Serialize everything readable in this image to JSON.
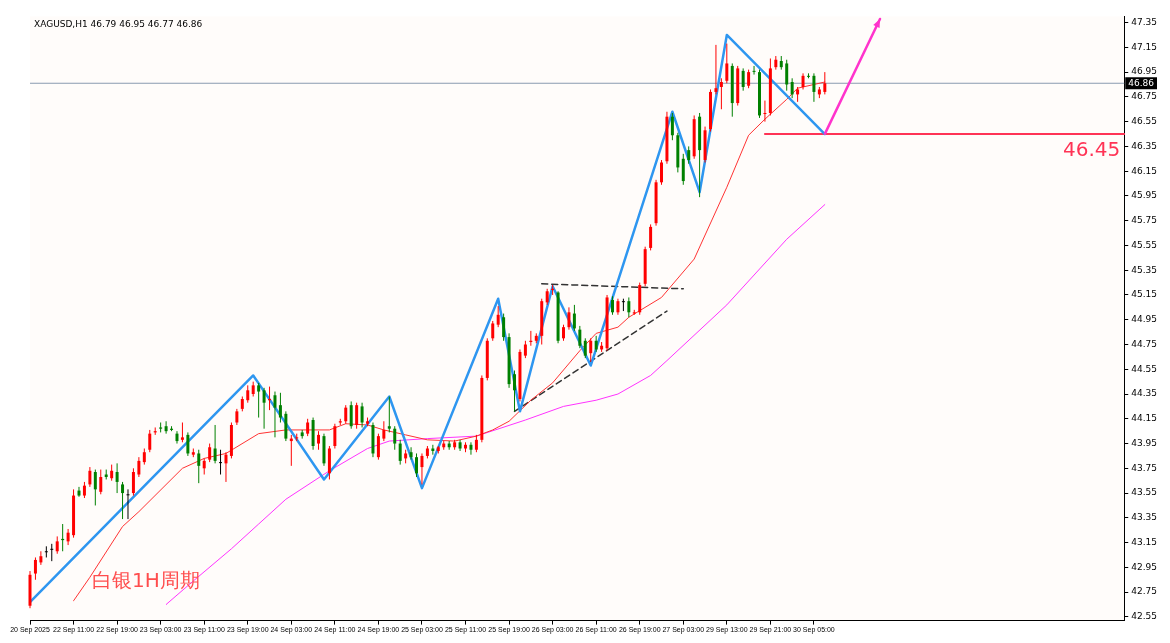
{
  "chart_data": {
    "type": "candlestick",
    "title": "XAGUSD,H1 46.79 46.95 46.77 46.86",
    "annotations": [
      "白银1H周期"
    ],
    "marker": "none",
    "categories": [
      "20 Sep 2025",
      null,
      null,
      null,
      null,
      null,
      null,
      null,
      "22 Sep 11:00",
      null,
      null,
      null,
      null,
      null,
      null,
      null,
      "22 Sep 19:00",
      null,
      null,
      null,
      null,
      null,
      null,
      null,
      "23 Sep 03:00",
      null,
      null,
      null,
      null,
      null,
      null,
      null,
      "23 Sep 11:00",
      null,
      null,
      null,
      null,
      null,
      null,
      null,
      "23 Sep 19:00",
      null,
      null,
      null,
      null,
      null,
      null,
      null,
      "24 Sep 03:00",
      null,
      null,
      null,
      null,
      null,
      null,
      null,
      "24 Sep 11:00",
      null,
      null,
      null,
      null,
      null,
      null,
      null,
      "24 Sep 19:00",
      null,
      null,
      null,
      null,
      null,
      null,
      null,
      "25 Sep 03:00",
      null,
      null,
      null,
      null,
      null,
      null,
      null,
      "25 Sep 11:00",
      null,
      null,
      null,
      null,
      null,
      null,
      null,
      "25 Sep 19:00",
      null,
      null,
      null,
      null,
      null,
      null,
      null,
      "26 Sep 03:00",
      null,
      null,
      null,
      null,
      null,
      null,
      null,
      "26 Sep 11:00",
      null,
      null,
      null,
      null,
      null,
      null,
      null,
      "26 Sep 19:00",
      null,
      null,
      null,
      null,
      null,
      null,
      null,
      "27 Sep 03:00",
      null,
      null,
      null,
      null,
      null,
      null,
      null,
      "29 Sep 13:00",
      null,
      null,
      null,
      null,
      null,
      null,
      null,
      "29 Sep 21:00",
      null,
      null,
      null,
      null,
      null,
      null,
      null,
      "30 Sep 05:00",
      null,
      null,
      null,
      null,
      null,
      null,
      null,
      null,
      null,
      null,
      null,
      null,
      null,
      null,
      null,
      null,
      null,
      null,
      null,
      null,
      null,
      null,
      null,
      null,
      null,
      null,
      null,
      null,
      null,
      null,
      null,
      null,
      null,
      null,
      null,
      null,
      null,
      null,
      null,
      null,
      null,
      null,
      null,
      null,
      null,
      null,
      null,
      null,
      null,
      null,
      null,
      null,
      null,
      null,
      null,
      null,
      null
    ],
    "ohlc": [
      [
        42.64,
        42.92,
        42.62,
        42.89
      ],
      [
        42.9,
        43.03,
        42.85,
        43.01
      ],
      [
        42.99,
        43.08,
        42.97,
        43.04
      ],
      [
        43.08,
        43.12,
        43.03,
        43.08
      ],
      [
        43.1,
        43.14,
        43.0,
        43.1
      ],
      [
        43.08,
        43.2,
        43.06,
        43.16
      ],
      [
        43.18,
        43.3,
        43.08,
        43.17
      ],
      [
        43.16,
        43.26,
        43.13,
        43.23
      ],
      [
        43.21,
        43.58,
        43.19,
        43.53
      ],
      [
        43.57,
        43.6,
        43.52,
        43.53
      ],
      [
        43.53,
        43.64,
        43.51,
        43.61
      ],
      [
        43.62,
        43.76,
        43.6,
        43.73
      ],
      [
        43.72,
        43.74,
        43.45,
        43.58
      ],
      [
        43.56,
        43.74,
        43.54,
        43.68
      ],
      [
        43.7,
        43.74,
        43.66,
        43.68
      ],
      [
        43.67,
        43.78,
        43.65,
        43.73
      ],
      [
        43.72,
        43.79,
        43.55,
        43.64
      ],
      [
        43.62,
        43.64,
        43.34,
        43.55
      ],
      [
        43.54,
        43.58,
        43.34,
        43.54
      ],
      [
        43.55,
        43.75,
        43.53,
        43.72
      ],
      [
        43.7,
        43.84,
        43.68,
        43.81
      ],
      [
        43.8,
        43.91,
        43.78,
        43.88
      ],
      [
        43.9,
        44.06,
        43.88,
        44.03
      ],
      [
        44.04,
        44.08,
        44.02,
        44.05
      ],
      [
        44.08,
        44.12,
        44.04,
        44.07
      ],
      [
        44.09,
        44.13,
        44.03,
        44.05
      ],
      [
        44.07,
        44.09,
        44.05,
        44.06
      ],
      [
        44.03,
        44.05,
        43.95,
        43.97
      ],
      [
        43.98,
        44.12,
        43.96,
        44.0
      ],
      [
        44.02,
        44.04,
        43.85,
        43.87
      ],
      [
        43.86,
        43.91,
        43.84,
        43.88
      ],
      [
        43.87,
        43.9,
        43.63,
        43.77
      ],
      [
        43.75,
        43.83,
        43.7,
        43.81
      ],
      [
        43.82,
        43.95,
        43.8,
        43.92
      ],
      [
        43.91,
        44.1,
        43.79,
        43.81
      ],
      [
        43.8,
        43.9,
        43.7,
        43.8
      ],
      [
        43.79,
        43.88,
        43.64,
        43.86
      ],
      [
        43.85,
        44.12,
        43.83,
        44.1
      ],
      [
        44.12,
        44.23,
        44.1,
        44.21
      ],
      [
        44.23,
        44.33,
        44.21,
        44.31
      ],
      [
        44.3,
        44.42,
        44.28,
        44.38
      ],
      [
        44.35,
        44.45,
        44.33,
        44.42
      ],
      [
        44.42,
        44.44,
        44.16,
        44.37
      ],
      [
        44.38,
        44.4,
        44.07,
        44.28
      ],
      [
        44.3,
        44.41,
        44.22,
        44.31
      ],
      [
        44.34,
        44.37,
        44.0,
        44.24
      ],
      [
        44.26,
        44.36,
        44.12,
        44.16
      ],
      [
        44.19,
        44.21,
        43.97,
        43.99
      ],
      [
        43.97,
        44.02,
        43.77,
        43.99
      ],
      [
        44.0,
        44.03,
        43.97,
        44.0
      ],
      [
        44.04,
        44.06,
        43.99,
        44.01
      ],
      [
        44.03,
        44.15,
        44.01,
        44.12
      ],
      [
        44.14,
        44.16,
        43.9,
        43.93
      ],
      [
        43.95,
        44.05,
        43.9,
        44.02
      ],
      [
        44.01,
        44.03,
        43.77,
        43.79
      ],
      [
        43.71,
        43.93,
        43.66,
        43.91
      ],
      [
        43.93,
        44.11,
        43.91,
        44.09
      ],
      [
        44.12,
        44.15,
        44.1,
        44.13
      ],
      [
        44.13,
        44.26,
        44.11,
        44.24
      ],
      [
        44.26,
        44.29,
        44.07,
        44.09
      ],
      [
        44.1,
        44.28,
        44.07,
        44.26
      ],
      [
        44.25,
        44.28,
        44.08,
        44.12
      ],
      [
        44.11,
        44.16,
        44.09,
        44.13
      ],
      [
        44.1,
        44.12,
        43.84,
        43.87
      ],
      [
        43.84,
        44.03,
        43.82,
        44.01
      ],
      [
        43.99,
        44.13,
        43.97,
        44.06
      ],
      [
        44.09,
        44.33,
        44.04,
        44.07
      ],
      [
        44.07,
        44.09,
        43.9,
        43.95
      ],
      [
        43.95,
        43.98,
        43.78,
        43.81
      ],
      [
        43.83,
        43.9,
        43.79,
        43.87
      ],
      [
        43.88,
        43.92,
        43.82,
        43.84
      ],
      [
        43.84,
        43.87,
        43.68,
        43.71
      ],
      [
        43.76,
        43.87,
        43.62,
        43.85
      ],
      [
        43.85,
        43.93,
        43.83,
        43.91
      ],
      [
        43.91,
        43.94,
        43.86,
        43.89
      ],
      [
        43.89,
        43.93,
        43.87,
        43.92
      ],
      [
        43.92,
        43.97,
        43.9,
        43.95
      ],
      [
        43.95,
        43.97,
        43.9,
        43.92
      ],
      [
        43.92,
        43.98,
        43.9,
        43.96
      ],
      [
        43.96,
        43.98,
        43.89,
        43.91
      ],
      [
        43.91,
        43.96,
        43.88,
        43.94
      ],
      [
        43.94,
        43.96,
        43.86,
        43.9
      ],
      [
        43.9,
        44.02,
        43.88,
        43.98
      ],
      [
        43.98,
        44.5,
        43.96,
        44.48
      ],
      [
        44.48,
        44.8,
        44.46,
        44.78
      ],
      [
        44.8,
        44.94,
        44.78,
        44.92
      ],
      [
        44.91,
        45.06,
        44.89,
        44.99
      ],
      [
        44.97,
        45.0,
        44.78,
        44.81
      ],
      [
        44.81,
        44.84,
        44.4,
        44.43
      ],
      [
        44.51,
        44.54,
        44.21,
        44.38
      ],
      [
        44.31,
        44.71,
        44.29,
        44.69
      ],
      [
        44.66,
        44.78,
        44.64,
        44.75
      ],
      [
        44.77,
        44.86,
        44.74,
        44.78
      ],
      [
        44.78,
        44.84,
        44.76,
        44.82
      ],
      [
        44.82,
        45.12,
        44.75,
        45.1
      ],
      [
        45.09,
        45.2,
        45.07,
        45.18
      ],
      [
        45.19,
        45.23,
        45.15,
        45.2
      ],
      [
        45.17,
        45.18,
        44.76,
        44.78
      ],
      [
        44.8,
        44.91,
        44.78,
        44.89
      ],
      [
        44.89,
        45.05,
        44.87,
        45.01
      ],
      [
        45.0,
        45.07,
        44.86,
        44.88
      ],
      [
        44.87,
        44.9,
        44.72,
        44.74
      ],
      [
        44.78,
        44.8,
        44.64,
        44.66
      ],
      [
        44.68,
        44.8,
        44.61,
        44.78
      ],
      [
        44.78,
        44.82,
        44.69,
        44.71
      ],
      [
        44.71,
        44.77,
        44.69,
        44.74
      ],
      [
        44.72,
        45.15,
        44.7,
        45.13
      ],
      [
        45.11,
        45.14,
        44.99,
        45.01
      ],
      [
        45.01,
        45.12,
        44.99,
        45.1
      ],
      [
        45.1,
        45.12,
        45.02,
        45.1
      ],
      [
        45.1,
        45.13,
        44.97,
        45.01
      ],
      [
        45.0,
        45.03,
        44.99,
        45.01
      ],
      [
        45.01,
        45.25,
        44.99,
        45.23
      ],
      [
        45.24,
        45.54,
        45.22,
        45.52
      ],
      [
        45.53,
        45.72,
        45.51,
        45.7
      ],
      [
        45.73,
        46.08,
        45.71,
        46.06
      ],
      [
        46.06,
        46.24,
        46.04,
        46.22
      ],
      [
        46.23,
        46.63,
        46.21,
        46.59
      ],
      [
        46.59,
        46.62,
        46.4,
        46.44
      ],
      [
        46.44,
        46.46,
        46.14,
        46.18
      ],
      [
        46.25,
        46.29,
        46.04,
        46.07
      ],
      [
        46.32,
        46.35,
        46.21,
        46.24
      ],
      [
        46.27,
        46.6,
        46.25,
        46.57
      ],
      [
        46.59,
        46.62,
        45.94,
        46.32
      ],
      [
        46.24,
        46.51,
        46.22,
        46.48
      ],
      [
        46.49,
        46.81,
        46.47,
        46.79
      ],
      [
        46.79,
        47.17,
        46.77,
        46.82
      ],
      [
        46.83,
        46.9,
        46.65,
        46.87
      ],
      [
        46.88,
        47.18,
        46.86,
        47.02
      ],
      [
        47.0,
        47.02,
        46.59,
        46.7
      ],
      [
        46.7,
        47.0,
        46.68,
        46.98
      ],
      [
        46.96,
        46.98,
        46.8,
        46.83
      ],
      [
        46.84,
        46.97,
        46.82,
        46.95
      ],
      [
        46.96,
        47.0,
        46.93,
        46.96
      ],
      [
        46.95,
        46.97,
        46.58,
        46.6
      ],
      [
        46.62,
        46.72,
        46.55,
        46.62
      ],
      [
        46.62,
        47.06,
        46.6,
        46.98
      ],
      [
        46.99,
        47.08,
        46.97,
        47.05
      ],
      [
        47.04,
        47.08,
        46.97,
        46.99
      ],
      [
        47.02,
        47.05,
        46.8,
        46.85
      ],
      [
        46.87,
        46.9,
        46.74,
        46.77
      ],
      [
        46.77,
        46.83,
        46.71,
        46.81
      ],
      [
        46.83,
        46.94,
        46.81,
        46.92
      ],
      [
        46.92,
        46.94,
        46.9,
        46.92
      ],
      [
        46.92,
        46.94,
        46.71,
        46.79
      ],
      [
        46.77,
        46.83,
        46.74,
        46.81
      ],
      [
        46.79,
        46.95,
        46.77,
        46.86
      ],
      null,
      null,
      null,
      null,
      null,
      null,
      null,
      null,
      null,
      null,
      null,
      null,
      null,
      null,
      null,
      null,
      null,
      null,
      null,
      null,
      null,
      null,
      null,
      null,
      null,
      null,
      null,
      null,
      null,
      null,
      null,
      null,
      null,
      null,
      null,
      null,
      null,
      null,
      null,
      null,
      null,
      null,
      null,
      null,
      null,
      null,
      null,
      null,
      null,
      null,
      null,
      null,
      null,
      null,
      null
    ],
    "colors": [
      "#ff0000",
      "#ff0000",
      "#ff0000",
      "#000000",
      "#000000",
      "#ff0000",
      "#008000",
      "#ff0000",
      "#ff0000",
      "#008000",
      "#ff0000",
      "#ff0000",
      "#008000",
      "#ff0000",
      "#008000",
      "#ff0000",
      "#008000",
      "#008000",
      "#000000",
      "#ff0000",
      "#ff0000",
      "#ff0000",
      "#ff0000",
      "#ff0000",
      "#008000",
      "#008000",
      "#008000",
      "#008000",
      "#ff0000",
      "#008000",
      "#ff0000",
      "#008000",
      "#ff0000",
      "#ff0000",
      "#008000",
      "#000000",
      "#ff0000",
      "#ff0000",
      "#ff0000",
      "#ff0000",
      "#ff0000",
      "#ff0000",
      "#008000",
      "#008000",
      "#ff0000",
      "#008000",
      "#008000",
      "#008000",
      "#ff0000",
      "#ff0000",
      "#008000",
      "#ff0000",
      "#008000",
      "#ff0000",
      "#008000",
      "#ff0000",
      "#ff0000",
      "#ff0000",
      "#ff0000",
      "#008000",
      "#ff0000",
      "#008000",
      "#ff0000",
      "#008000",
      "#ff0000",
      "#ff0000",
      "#008000",
      "#008000",
      "#008000",
      "#ff0000",
      "#008000",
      "#008000",
      "#ff0000",
      "#ff0000",
      "#008000",
      "#ff0000",
      "#ff0000",
      "#008000",
      "#ff0000",
      "#008000",
      "#ff0000",
      "#008000",
      "#ff0000",
      "#ff0000",
      "#ff0000",
      "#ff0000",
      "#ff0000",
      "#008000",
      "#008000",
      "#008000",
      "#ff0000",
      "#ff0000",
      "#ff0000",
      "#ff0000",
      "#ff0000",
      "#ff0000",
      "#ff0000",
      "#008000",
      "#ff0000",
      "#ff0000",
      "#008000",
      "#008000",
      "#008000",
      "#ff0000",
      "#008000",
      "#ff0000",
      "#ff0000",
      "#008000",
      "#ff0000",
      "#000000",
      "#008000",
      "#ff0000",
      "#ff0000",
      "#ff0000",
      "#ff0000",
      "#ff0000",
      "#ff0000",
      "#ff0000",
      "#008000",
      "#008000",
      "#008000",
      "#008000",
      "#ff0000",
      "#008000",
      "#ff0000",
      "#ff0000",
      "#ff0000",
      "#ff0000",
      "#ff0000",
      "#008000",
      "#ff0000",
      "#008000",
      "#ff0000",
      "#008000",
      "#008000",
      "#ff0000",
      "#ff0000",
      "#ff0000",
      "#008000",
      "#008000",
      "#008000",
      "#ff0000",
      "#ff0000",
      "#008000",
      "#008000",
      "#ff0000",
      "#ff0000",
      null,
      null,
      null,
      null,
      null,
      null,
      null,
      null,
      null,
      null,
      null,
      null,
      null,
      null,
      null,
      null,
      null,
      null,
      null,
      null,
      null,
      null,
      null,
      null,
      null,
      null,
      null,
      null,
      null,
      null,
      null,
      null,
      null,
      null,
      null,
      null,
      null,
      null,
      null,
      null,
      null,
      null,
      null,
      null,
      null,
      null,
      null,
      null,
      null,
      null,
      null,
      null,
      null,
      null,
      null
    ],
    "series": [
      {
        "type": "line",
        "color": "#2e96f0",
        "line_style": "solid",
        "values": [
          42.67,
          null,
          null,
          null,
          null,
          null,
          null,
          null,
          null,
          null,
          null,
          null,
          null,
          null,
          null,
          null,
          null,
          null,
          null,
          null,
          null,
          null,
          null,
          null,
          null,
          null,
          null,
          null,
          null,
          null,
          null,
          null,
          null,
          null,
          null,
          null,
          null,
          null,
          null,
          null,
          null,
          44.5,
          null,
          null,
          null,
          null,
          null,
          null,
          null,
          null,
          null,
          null,
          null,
          null,
          43.66,
          null,
          null,
          null,
          null,
          null,
          null,
          null,
          null,
          null,
          null,
          null,
          44.33,
          null,
          null,
          null,
          null,
          null,
          43.59,
          null,
          null,
          null,
          null,
          null,
          null,
          null,
          null,
          null,
          null,
          null,
          null,
          null,
          45.12,
          null,
          null,
          null,
          44.21,
          null,
          null,
          null,
          null,
          null,
          45.22,
          null,
          null,
          null,
          null,
          null,
          null,
          44.58,
          null,
          null,
          null,
          null,
          null,
          null,
          null,
          null,
          null,
          null,
          null,
          null,
          null,
          null,
          46.63,
          null,
          null,
          null,
          null,
          45.98,
          null,
          null,
          null,
          null,
          47.25,
          null,
          null,
          null,
          null,
          null,
          null,
          null,
          null,
          null,
          null,
          null,
          null,
          null,
          null,
          null,
          null,
          null,
          46.45,
          null,
          null,
          null,
          null,
          null,
          null,
          null,
          null,
          null,
          null,
          null,
          null,
          null,
          null,
          null,
          null,
          null,
          null,
          null,
          null,
          null,
          null,
          null,
          null,
          null,
          null,
          null,
          null,
          null,
          null,
          null,
          null,
          null,
          null,
          null,
          null,
          null,
          null,
          null,
          null,
          null,
          null,
          null,
          null,
          null,
          null,
          null,
          null,
          null,
          null,
          null,
          null,
          null,
          null,
          null
        ]
      },
      {
        "type": "line",
        "color": "#ff3333",
        "line_style": "solid",
        "values": [
          null,
          null,
          null,
          null,
          null,
          null,
          null,
          null,
          42.68,
          null,
          null,
          42.87,
          null,
          null,
          null,
          null,
          null,
          43.28,
          null,
          null,
          43.4,
          null,
          null,
          null,
          null,
          null,
          null,
          null,
          43.75,
          null,
          null,
          null,
          43.83,
          null,
          null,
          null,
          43.87,
          null,
          null,
          null,
          null,
          null,
          44.03,
          null,
          null,
          null,
          null,
          44.06,
          null,
          null,
          null,
          null,
          null,
          null,
          null,
          44.06,
          null,
          null,
          44.11,
          null,
          null,
          null,
          44.1,
          null,
          null,
          44.06,
          null,
          null,
          null,
          44.02,
          null,
          null,
          null,
          43.98,
          null,
          null,
          null,
          null,
          43.97,
          null,
          null,
          null,
          44.01,
          null,
          null,
          44.06,
          null,
          null,
          44.13,
          null,
          null,
          null,
          44.3,
          null,
          null,
          null,
          44.44,
          null,
          null,
          null,
          null,
          44.7,
          null,
          null,
          44.84,
          null,
          null,
          null,
          44.89,
          null,
          44.97,
          null,
          null,
          null,
          null,
          null,
          45.13,
          null,
          null,
          null,
          null,
          null,
          45.44,
          null,
          null,
          null,
          null,
          null,
          46.02,
          null,
          null,
          null,
          46.44,
          null,
          null,
          46.57,
          null,
          null,
          null,
          46.73,
          null,
          46.82,
          null,
          null,
          null,
          null,
          46.87,
          null,
          null,
          null,
          null,
          null,
          null,
          null,
          null,
          null,
          null,
          null,
          null,
          null,
          null,
          null,
          null,
          null,
          null,
          null,
          null,
          null,
          null,
          null,
          null,
          null,
          null,
          null,
          null,
          null,
          null,
          null,
          null,
          null,
          null,
          null,
          null,
          null,
          null,
          null,
          null,
          null,
          null,
          null,
          null,
          null,
          null,
          null,
          null,
          null,
          null,
          null,
          null,
          null,
          null,
          null
        ]
      },
      {
        "type": "line",
        "color": "#ff33ff",
        "line_style": "solid",
        "values": [
          null,
          null,
          null,
          null,
          null,
          null,
          null,
          null,
          null,
          null,
          null,
          null,
          null,
          null,
          null,
          null,
          null,
          null,
          null,
          null,
          null,
          null,
          null,
          null,
          null,
          42.65,
          null,
          null,
          null,
          null,
          42.84,
          null,
          null,
          null,
          null,
          null,
          null,
          43.1,
          null,
          null,
          null,
          null,
          43.3,
          null,
          null,
          null,
          null,
          43.5,
          null,
          null,
          null,
          null,
          null,
          null,
          null,
          43.73,
          null,
          null,
          null,
          null,
          null,
          null,
          43.91,
          null,
          null,
          null,
          43.97,
          null,
          null,
          null,
          null,
          null,
          null,
          43.99,
          null,
          null,
          null,
          null,
          null,
          null,
          null,
          null,
          44.01,
          null,
          null,
          null,
          null,
          null,
          null,
          null,
          null,
          44.14,
          null,
          null,
          null,
          null,
          null,
          null,
          44.25,
          null,
          null,
          null,
          null,
          null,
          44.3,
          null,
          null,
          null,
          44.35,
          null,
          null,
          null,
          null,
          null,
          44.5,
          null,
          null,
          44.62,
          null,
          null,
          null,
          null,
          null,
          null,
          null,
          null,
          null,
          null,
          45.07,
          null,
          null,
          null,
          null,
          null,
          null,
          null,
          null,
          null,
          null,
          45.6,
          null,
          null,
          null,
          null,
          null,
          null,
          45.88,
          null,
          null,
          null,
          null,
          null,
          null,
          null,
          null,
          null,
          null,
          null,
          null,
          null,
          null,
          null,
          null,
          null,
          null,
          null,
          null,
          null,
          null,
          null,
          null,
          null,
          null,
          null,
          null,
          null,
          null,
          null,
          null,
          null,
          null,
          null,
          null,
          null,
          null,
          null,
          null,
          null,
          null,
          null,
          null,
          null,
          null,
          null,
          null,
          null,
          null,
          null,
          null,
          null,
          null,
          null
        ]
      },
      {
        "type": "line",
        "color": "#333333",
        "line_style": "dashed",
        "values": [
          null,
          null,
          null,
          null,
          null,
          null,
          null,
          null,
          null,
          null,
          null,
          null,
          null,
          null,
          null,
          null,
          null,
          null,
          null,
          null,
          null,
          null,
          null,
          null,
          null,
          null,
          null,
          null,
          null,
          null,
          null,
          null,
          null,
          null,
          null,
          null,
          null,
          null,
          null,
          null,
          null,
          null,
          null,
          null,
          null,
          null,
          null,
          null,
          null,
          null,
          null,
          null,
          null,
          null,
          null,
          null,
          null,
          null,
          null,
          null,
          null,
          null,
          null,
          null,
          null,
          null,
          null,
          null,
          null,
          null,
          null,
          null,
          null,
          null,
          null,
          null,
          null,
          null,
          null,
          null,
          null,
          null,
          null,
          null,
          null,
          null,
          null,
          null,
          null,
          null,
          null,
          null,
          null,
          null,
          45.24,
          null,
          null,
          null,
          null,
          null,
          null,
          null,
          null,
          null,
          null,
          null,
          null,
          null,
          null,
          null,
          null,
          null,
          null,
          null,
          null,
          null,
          null,
          null,
          null,
          null,
          45.2,
          null,
          null,
          null,
          null,
          null,
          null,
          null,
          null,
          null,
          null,
          null,
          null,
          null,
          null,
          null,
          null,
          null,
          null,
          null,
          null,
          null,
          null,
          null,
          null,
          null,
          null,
          null,
          null,
          null,
          null,
          null,
          null,
          null,
          null,
          null,
          null,
          null,
          null,
          null,
          null,
          null,
          null,
          null,
          null,
          null,
          null,
          null,
          null,
          null,
          null,
          null,
          null,
          null,
          null,
          null,
          null,
          null,
          null,
          null,
          null,
          null,
          null,
          null,
          null,
          null,
          null,
          null,
          null,
          null,
          null,
          null,
          null,
          null,
          null,
          null,
          null,
          null,
          null,
          null,
          null,
          null
        ]
      },
      {
        "type": "line",
        "color": "#333333",
        "line_style": "dashed",
        "values": [
          null,
          null,
          null,
          null,
          null,
          null,
          null,
          null,
          null,
          null,
          null,
          null,
          null,
          null,
          null,
          null,
          null,
          null,
          null,
          null,
          null,
          null,
          null,
          null,
          null,
          null,
          null,
          null,
          null,
          null,
          null,
          null,
          null,
          null,
          null,
          null,
          null,
          null,
          null,
          null,
          null,
          null,
          null,
          null,
          null,
          null,
          null,
          null,
          null,
          null,
          null,
          null,
          null,
          null,
          null,
          null,
          null,
          null,
          null,
          null,
          null,
          null,
          null,
          null,
          null,
          null,
          null,
          null,
          null,
          null,
          null,
          null,
          null,
          null,
          null,
          null,
          null,
          null,
          null,
          null,
          null,
          null,
          null,
          null,
          null,
          null,
          null,
          null,
          null,
          44.21,
          null,
          null,
          null,
          null,
          null,
          null,
          null,
          null,
          null,
          null,
          null,
          null,
          null,
          null,
          null,
          null,
          null,
          null,
          null,
          null,
          null,
          null,
          null,
          null,
          null,
          null,
          null,
          45.02,
          null,
          null,
          null,
          null,
          null,
          null,
          null,
          null,
          null,
          null,
          null,
          null,
          null,
          null,
          null,
          null,
          null,
          null,
          null,
          null,
          null,
          null,
          null,
          null,
          null,
          null,
          null,
          null,
          null,
          null,
          null,
          null,
          null,
          null,
          null,
          null,
          null,
          null,
          null,
          null,
          null,
          null,
          null,
          null,
          null,
          null,
          null,
          null,
          null,
          null,
          null,
          null,
          null,
          null,
          null,
          null,
          null,
          null,
          null,
          null,
          null,
          null,
          null,
          null,
          null,
          null,
          null,
          null,
          null,
          null,
          null,
          null,
          null,
          null,
          null,
          null,
          null,
          null,
          null,
          null,
          null,
          null,
          null,
          null
        ]
      },
      {
        "type": "line",
        "name": "46.45",
        "color": "#ff3355",
        "line_style": "solid",
        "values": [
          null,
          null,
          null,
          null,
          null,
          null,
          null,
          null,
          null,
          null,
          null,
          null,
          null,
          null,
          null,
          null,
          null,
          null,
          null,
          null,
          null,
          null,
          null,
          null,
          null,
          null,
          null,
          null,
          null,
          null,
          null,
          null,
          null,
          null,
          null,
          null,
          null,
          null,
          null,
          null,
          null,
          null,
          null,
          null,
          null,
          null,
          null,
          null,
          null,
          null,
          null,
          null,
          null,
          null,
          null,
          null,
          null,
          null,
          null,
          null,
          null,
          null,
          null,
          null,
          null,
          null,
          null,
          null,
          null,
          null,
          null,
          null,
          null,
          null,
          null,
          null,
          null,
          null,
          null,
          null,
          null,
          null,
          null,
          null,
          null,
          null,
          null,
          null,
          null,
          null,
          null,
          null,
          null,
          null,
          null,
          null,
          null,
          null,
          null,
          null,
          null,
          null,
          null,
          null,
          null,
          null,
          null,
          null,
          null,
          null,
          null,
          null,
          null,
          null,
          null,
          null,
          null,
          null,
          null,
          null,
          null,
          null,
          null,
          null,
          null,
          null,
          null,
          null,
          null,
          null,
          null,
          null,
          null,
          null,
          null,
          46.45,
          null,
          null,
          null,
          null,
          null,
          null,
          null,
          null,
          null,
          null,
          null,
          null,
          null,
          null,
          null,
          null,
          null,
          null,
          null,
          null,
          null,
          null,
          null,
          null,
          null,
          null,
          null,
          null,
          null,
          null,
          null,
          null,
          null,
          null,
          null,
          null,
          null,
          null,
          null,
          null,
          null,
          null,
          null,
          null,
          null,
          null,
          null,
          null,
          null,
          null,
          null,
          null,
          null,
          null,
          null,
          null,
          null,
          null,
          null,
          null,
          null,
          null,
          null,
          null,
          null,
          46.45
        ]
      }
    ],
    "ylim": [
      42.52,
      47.4
    ],
    "yticks": [
      42.55,
      42.75,
      42.95,
      43.15,
      43.35,
      43.55,
      43.75,
      43.95,
      44.15,
      44.35,
      44.55,
      44.75,
      44.95,
      45.15,
      45.35,
      45.55,
      45.75,
      45.95,
      46.15,
      46.35,
      46.55,
      46.75,
      46.95,
      47.15,
      47.35
    ],
    "ref_lines": [
      {
        "axis": "y",
        "value": 46.86,
        "label": "46.86",
        "color": "#8a9bb0"
      }
    ]
  }
}
